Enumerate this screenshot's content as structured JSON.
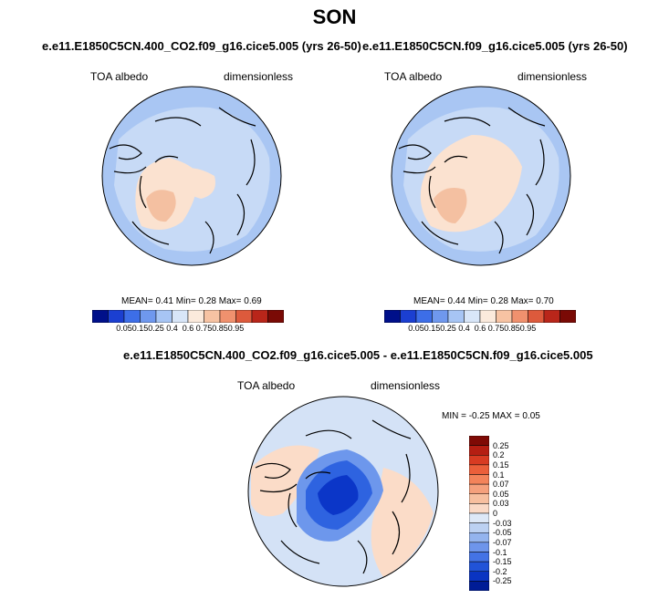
{
  "figure": {
    "season": "SON",
    "panels": [
      {
        "case": "e.e11.E1850C5CN.400_CO2.f09_g16.cice5.005 (yrs 26-50)",
        "variable": "TOA albedo",
        "units": "dimensionless",
        "stats": {
          "mean_label": "MEAN=",
          "mean": "0.41",
          "min_label": "Min=",
          "min": "0.28",
          "max_label": "Max=",
          "max": "0.69"
        }
      },
      {
        "case": "e.e11.E1850C5CN.f09_g16.cice5.005 (yrs 26-50)",
        "variable": "TOA albedo",
        "units": "dimensionless",
        "stats": {
          "mean_label": "MEAN=",
          "mean": "0.44",
          "min_label": "Min=",
          "min": "0.28",
          "max_label": "Max=",
          "max": "0.70"
        }
      }
    ],
    "colorbar_levels": [
      "0.05",
      "0.15",
      "0.25",
      "0.4",
      "0.6",
      "0.75",
      "0.85",
      "0.95"
    ],
    "colorbar_colors": [
      "#00108a",
      "#1b3fd1",
      "#3d6ee8",
      "#6f98ee",
      "#a7c5f4",
      "#d8e6f8",
      "#fbeadc",
      "#f7c3a3",
      "#f0916e",
      "#dd5a3c",
      "#b9261a",
      "#7a0a05"
    ],
    "difference": {
      "case": "e.e11.E1850C5CN.400_CO2.f09_g16.cice5.005 - e.e11.E1850C5CN.f09_g16.cice5.005",
      "variable": "TOA albedo",
      "units": "dimensionless",
      "stats": "MIN =  -0.25 MAX =   0.05",
      "colorbar_levels": [
        "0.25",
        "0.2",
        "0.15",
        "0.1",
        "0.07",
        "0.05",
        "0.03",
        "0",
        "-0.03",
        "-0.05",
        "-0.07",
        "-0.1",
        "-0.15",
        "-0.2",
        "-0.25"
      ],
      "colorbar_colors": [
        "#7f0a05",
        "#b51e12",
        "#d83b22",
        "#eb5f3a",
        "#f3835a",
        "#f5a07c",
        "#f7bf9f",
        "#fad9c6",
        "#dde8f7",
        "#bcd1f2",
        "#94b4ee",
        "#6e95eb",
        "#4473e5",
        "#2153d8",
        "#0a34c2",
        "#001c96"
      ]
    },
    "map_colors": {
      "ocean_low": "#a9c6f3",
      "ocean_mid": "#c7daf6",
      "ice_high": "#fbe2d0",
      "ice_higher": "#f4c0a1",
      "diff_base": "#d4e2f6",
      "diff_pos": "#fbdcc8",
      "diff_neg_1": "#6d97ec",
      "diff_neg_2": "#2e63e0",
      "diff_neg_3": "#0b36c8"
    }
  }
}
